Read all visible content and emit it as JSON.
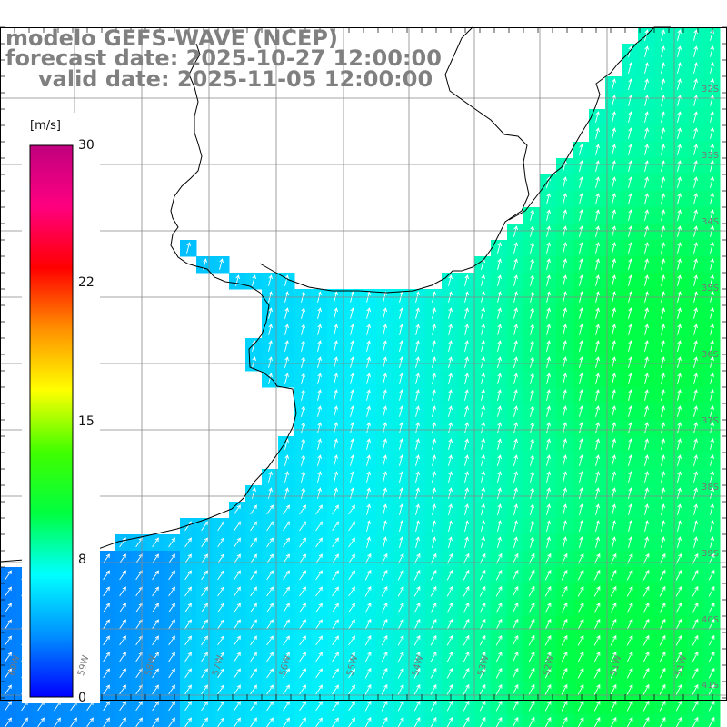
{
  "title": {
    "line1": "modelo GEFS-WAVE (NCEP)",
    "line2": "forecast date: 2025-10-27 12:00:00",
    "line3": "valid date: 2025-11-05 12:00:00"
  },
  "colorbar": {
    "unit": "[m/s]",
    "ticks": [
      "30",
      "22",
      "15",
      "8",
      "0"
    ],
    "colors": [
      "#0000ff",
      "#0090ff",
      "#00ffff",
      "#00ff40",
      "#40ff00",
      "#ffff00",
      "#ff9000",
      "#ff0000",
      "#ff0080",
      "#c0007f"
    ]
  },
  "axes": {
    "lat_labels": [
      "32S",
      "33S",
      "34S",
      "35S",
      "36S",
      "37S",
      "38S",
      "39S",
      "40S",
      "41S"
    ],
    "lon_labels": [
      "60W",
      "59W",
      "58W",
      "57W",
      "56W",
      "55W",
      "54W",
      "53W",
      "52W",
      "51W"
    ]
  },
  "field": {
    "parameter": "wind speed",
    "direction": "wind blowing toward north-northeast",
    "speed_range_ms": [
      3,
      13
    ]
  }
}
